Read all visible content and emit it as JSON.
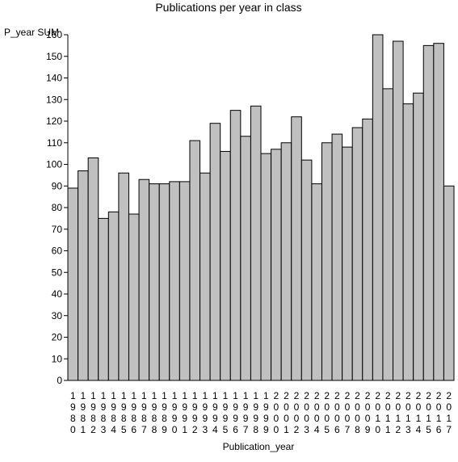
{
  "chart_data": {
    "type": "bar",
    "title": "Publications per year in class",
    "xlabel": "Publication_year",
    "ylabel": "P_year SUM",
    "ylim": [
      0,
      160
    ],
    "y_ticks": [
      0,
      10,
      20,
      30,
      40,
      50,
      60,
      70,
      80,
      90,
      100,
      110,
      120,
      130,
      140,
      150,
      160
    ],
    "grid": false,
    "legend": "none",
    "bar_color": "#c0c0c0",
    "categories": [
      "1980",
      "1981",
      "1982",
      "1983",
      "1984",
      "1985",
      "1986",
      "1987",
      "1988",
      "1989",
      "1990",
      "1991",
      "1992",
      "1993",
      "1994",
      "1995",
      "1996",
      "1997",
      "1998",
      "1999",
      "2000",
      "2001",
      "2002",
      "2003",
      "2004",
      "2005",
      "2006",
      "2007",
      "2008",
      "2009",
      "2010",
      "2011",
      "2012",
      "2013",
      "2014",
      "2015",
      "2016",
      "2017"
    ],
    "values": [
      89,
      97,
      103,
      75,
      78,
      96,
      77,
      93,
      91,
      91,
      92,
      92,
      111,
      96,
      119,
      106,
      125,
      113,
      127,
      105,
      107,
      110,
      122,
      102,
      91,
      110,
      114,
      108,
      117,
      121,
      160,
      135,
      157,
      128,
      133,
      155,
      156,
      90
    ]
  }
}
